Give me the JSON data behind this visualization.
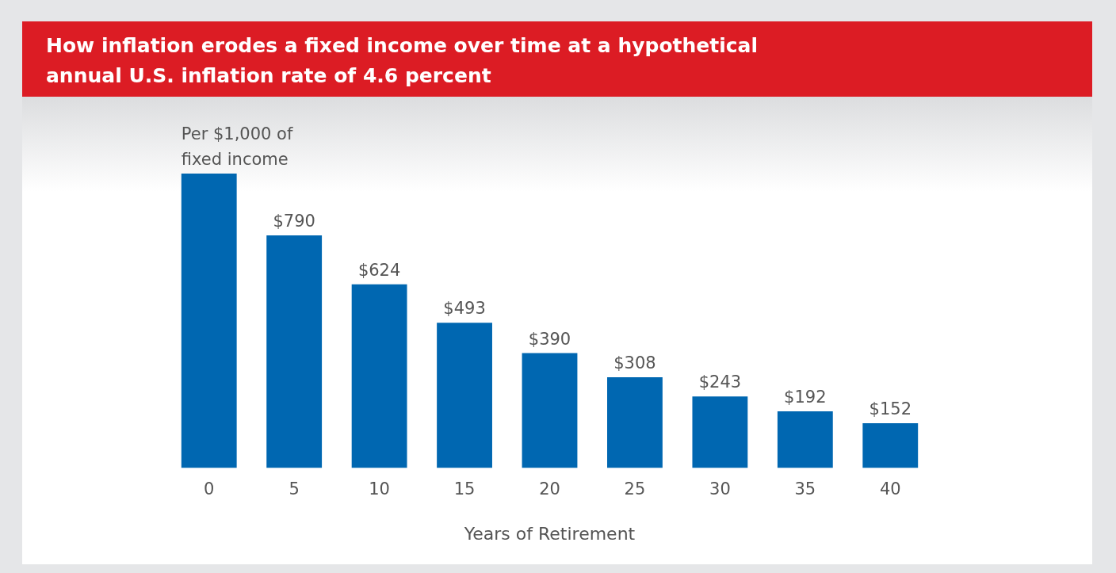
{
  "chart_data": {
    "type": "bar",
    "title": "How inflation erodes a fixed income over time at a hypothetical annual U.S. inflation rate of 4.6 percent",
    "xlabel": "Years of Retirement",
    "categories": [
      "0",
      "5",
      "10",
      "15",
      "20",
      "25",
      "30",
      "35",
      "40"
    ],
    "values": [
      1000,
      790,
      624,
      493,
      390,
      308,
      243,
      192,
      152
    ],
    "value_labels": [
      "Per $1,000 of fixed income",
      "$790",
      "$624",
      "$493",
      "$390",
      "$308",
      "$243",
      "$192",
      "$152"
    ],
    "color": "#0067b1",
    "tick_labels": "x",
    "grid": false,
    "legend": false
  }
}
